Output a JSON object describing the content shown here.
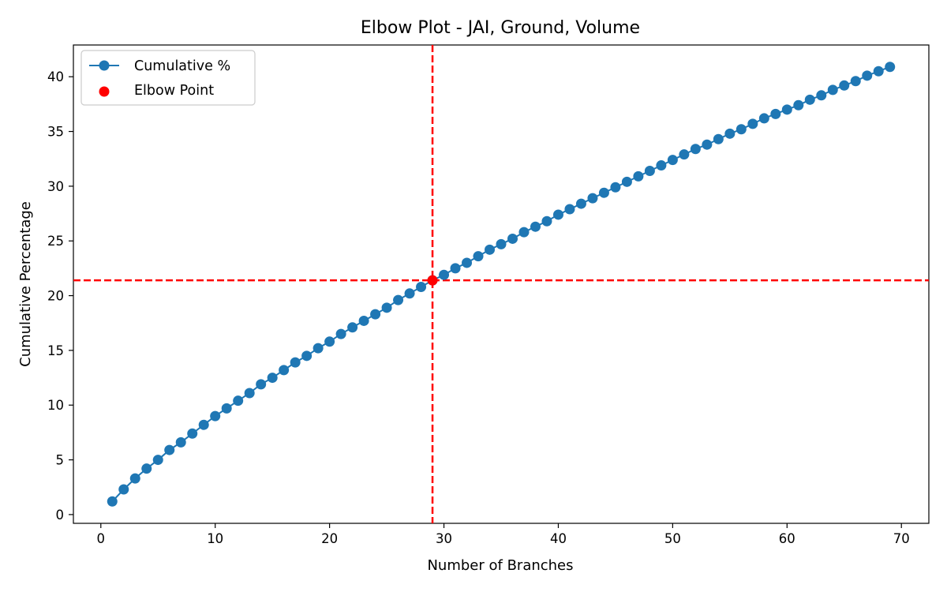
{
  "chart_data": {
    "type": "line",
    "title": "Elbow Plot - JAI, Ground, Volume",
    "xlabel": "Number of Branches",
    "ylabel": "Cumulative Percentage",
    "xlim": [
      -2.4,
      72.4
    ],
    "ylim": [
      -0.8,
      42.9
    ],
    "xticks": [
      0,
      10,
      20,
      30,
      40,
      50,
      60,
      70
    ],
    "yticks": [
      0,
      5,
      10,
      15,
      20,
      25,
      30,
      35,
      40
    ],
    "grid": false,
    "legend_position": "top-left",
    "series": [
      {
        "name": "Cumulative %",
        "color": "#1f77b4",
        "marker": "circle",
        "x": [
          1,
          2,
          3,
          4,
          5,
          6,
          7,
          8,
          9,
          10,
          11,
          12,
          13,
          14,
          15,
          16,
          17,
          18,
          19,
          20,
          21,
          22,
          23,
          24,
          25,
          26,
          27,
          28,
          29,
          30,
          31,
          32,
          33,
          34,
          35,
          36,
          37,
          38,
          39,
          40,
          41,
          42,
          43,
          44,
          45,
          46,
          47,
          48,
          49,
          50,
          51,
          52,
          53,
          54,
          55,
          56,
          57,
          58,
          59,
          60,
          61,
          62,
          63,
          64,
          65,
          66,
          67,
          68,
          69
        ],
        "y": [
          1.2,
          2.3,
          3.3,
          4.2,
          5.0,
          5.9,
          6.6,
          7.4,
          8.2,
          9.0,
          9.7,
          10.4,
          11.1,
          11.9,
          12.5,
          13.2,
          13.9,
          14.5,
          15.2,
          15.8,
          16.5,
          17.1,
          17.7,
          18.3,
          18.9,
          19.6,
          20.2,
          20.8,
          21.4,
          21.9,
          22.5,
          23.0,
          23.6,
          24.2,
          24.7,
          25.2,
          25.8,
          26.3,
          26.8,
          27.4,
          27.9,
          28.4,
          28.9,
          29.4,
          29.9,
          30.4,
          30.9,
          31.4,
          31.9,
          32.4,
          32.9,
          33.4,
          33.8,
          34.3,
          34.8,
          35.2,
          35.7,
          36.2,
          36.6,
          37.0,
          37.4,
          37.9,
          38.3,
          38.8,
          39.2,
          39.6,
          40.1,
          40.5,
          40.9
        ]
      }
    ],
    "elbow_point": {
      "name": "Elbow Point",
      "x": 29,
      "y": 21.4,
      "color": "#ff0000"
    },
    "reference_lines": {
      "color": "#ff0000",
      "style": "dashed",
      "vertical_x": 29,
      "horizontal_y": 21.4
    }
  }
}
